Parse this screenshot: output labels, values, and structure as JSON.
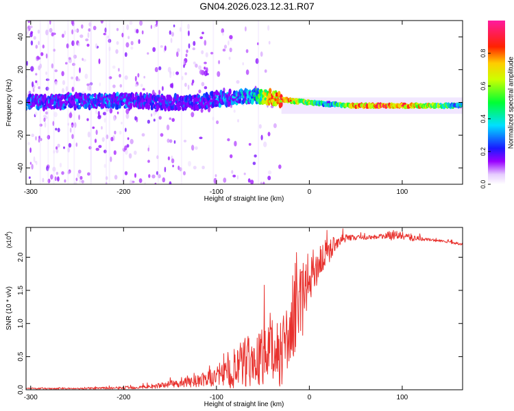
{
  "title": "GN04.2026.023.12.31.R07",
  "chart_data": [
    {
      "type": "heatmap",
      "name": "spectrogram",
      "title": "GN04.2026.023.12.31.R07",
      "xlabel": "Height of straight line (km)",
      "ylabel": "Frequency (Hz)",
      "xlim": [
        -305,
        165
      ],
      "ylim": [
        -50,
        50
      ],
      "x_ticks": [
        -300,
        -200,
        -100,
        0,
        100
      ],
      "x_tick_labels": [
        "-300",
        "-200",
        "-100",
        "0",
        "100"
      ],
      "y_ticks": [
        -40,
        -20,
        0,
        20,
        40
      ],
      "y_tick_labels": [
        "-40",
        "-20",
        "0",
        "20",
        "40"
      ],
      "colorbar": {
        "label": "Normalized spectral amplitude",
        "range": [
          0,
          1
        ],
        "ticks": [
          0.0,
          0.2,
          0.4,
          0.6,
          0.8
        ],
        "tick_labels": [
          "0.0",
          "0.2",
          "0.4",
          "0.6",
          "0.8"
        ],
        "colormap": "rainbow (white-violet-blue-cyan-green-yellow-red-magenta)"
      },
      "ridge": {
        "description": "dominant spectral component frequency vs height",
        "x": [
          -305,
          -250,
          -200,
          -150,
          -120,
          -100,
          -80,
          -60,
          -40,
          -30,
          -20,
          0,
          20,
          50,
          80,
          100,
          140,
          165
        ],
        "freq": [
          0,
          1,
          1,
          0,
          0,
          2,
          3,
          4,
          3,
          2,
          1,
          0,
          -1,
          -2,
          -2,
          -2,
          -2,
          -2
        ],
        "amplitude": [
          0.35,
          0.35,
          0.35,
          0.3,
          0.3,
          0.35,
          0.4,
          0.5,
          0.9,
          0.9,
          0.85,
          0.7,
          0.45,
          0.9,
          0.95,
          0.95,
          0.7,
          0.45
        ]
      }
    },
    {
      "type": "line",
      "name": "snr",
      "xlabel": "Height of straight line (km)",
      "ylabel": "SNR (10 * v/v)",
      "y_multiplier_label": "(x10",
      "y_multiplier_exponent": "4",
      "y_multiplier_close": ")",
      "xlim": [
        -305,
        165
      ],
      "ylim": [
        0,
        2.45
      ],
      "x_ticks": [
        -300,
        -200,
        -100,
        0,
        100
      ],
      "x_tick_labels": [
        "-300",
        "-200",
        "-100",
        "0",
        "100"
      ],
      "y_ticks": [
        0.0,
        0.5,
        1.0,
        1.5,
        2.0
      ],
      "y_tick_labels": [
        "0.0",
        "0.5",
        "1.0",
        "1.5",
        "2.0"
      ],
      "series": [
        {
          "name": "SNR",
          "color": "#e8312d",
          "x": [
            -305,
            -250,
            -200,
            -170,
            -150,
            -130,
            -110,
            -100,
            -90,
            -80,
            -70,
            -60,
            -50,
            -40,
            -30,
            -25,
            -20,
            -15,
            -10,
            -5,
            0,
            5,
            10,
            20,
            30,
            40,
            60,
            80,
            90,
            100,
            110,
            120,
            140,
            165
          ],
          "y": [
            0.02,
            0.02,
            0.03,
            0.05,
            0.09,
            0.12,
            0.17,
            0.22,
            0.25,
            0.32,
            0.42,
            0.45,
            0.55,
            0.6,
            0.65,
            0.78,
            0.9,
            1.05,
            1.3,
            1.5,
            1.75,
            1.82,
            1.95,
            2.1,
            2.25,
            2.3,
            2.3,
            2.32,
            2.34,
            2.33,
            2.3,
            2.28,
            2.25,
            2.2
          ],
          "spread": [
            0.01,
            0.01,
            0.02,
            0.03,
            0.05,
            0.08,
            0.12,
            0.15,
            0.2,
            0.35,
            0.4,
            0.35,
            0.45,
            0.5,
            0.55,
            0.5,
            0.45,
            0.55,
            0.6,
            0.5,
            0.4,
            0.35,
            0.3,
            0.2,
            0.1,
            0.05,
            0.03,
            0.04,
            0.08,
            0.05,
            0.06,
            0.03,
            0.02,
            0.02
          ]
        }
      ]
    }
  ]
}
